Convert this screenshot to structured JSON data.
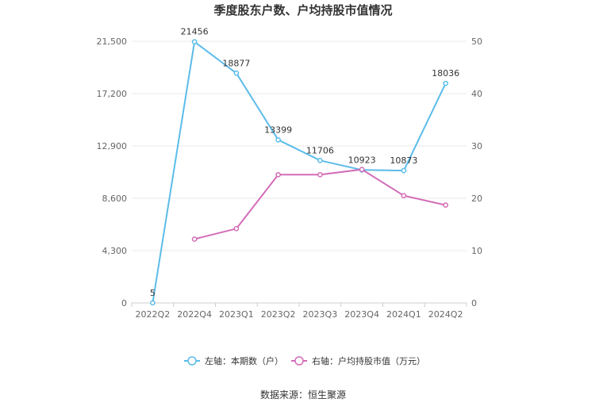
{
  "chart_data": {
    "type": "line",
    "title": "季度股东户数、户均持股市值情况",
    "categories": [
      "2022Q2",
      "2022Q4",
      "2023Q1",
      "2023Q2",
      "2023Q3",
      "2023Q4",
      "2024Q1",
      "2024Q2"
    ],
    "series": [
      {
        "name": "左轴：本期数（户）",
        "axis": "left",
        "color": "#5bbcea",
        "values": [
          5,
          21456,
          18877,
          13399,
          11706,
          10923,
          10873,
          18036
        ],
        "labels": [
          "5",
          "21456",
          "18877",
          "13399",
          "11706",
          "10923",
          "10873",
          "18036"
        ]
      },
      {
        "name": "右轴：户均持股市值（万元）",
        "axis": "right",
        "color": "#d36cb8",
        "values": [
          null,
          12.2,
          14.2,
          24.5,
          24.5,
          25.5,
          20.5,
          18.7
        ]
      }
    ],
    "left_axis": {
      "ylim": [
        0,
        21500
      ],
      "ticks": [
        0,
        4300,
        8600,
        12900,
        17200,
        21500
      ],
      "tick_labels": [
        "0",
        "4,300",
        "8,600",
        "12,900",
        "17,200",
        "21,500"
      ]
    },
    "right_axis": {
      "ylim": [
        0,
        50
      ],
      "ticks": [
        0,
        10,
        20,
        30,
        40,
        50
      ],
      "tick_labels": [
        "0",
        "10",
        "20",
        "30",
        "40",
        "50"
      ]
    },
    "grid": true,
    "legend_position": "bottom"
  },
  "source": "数据来源：恒生聚源"
}
